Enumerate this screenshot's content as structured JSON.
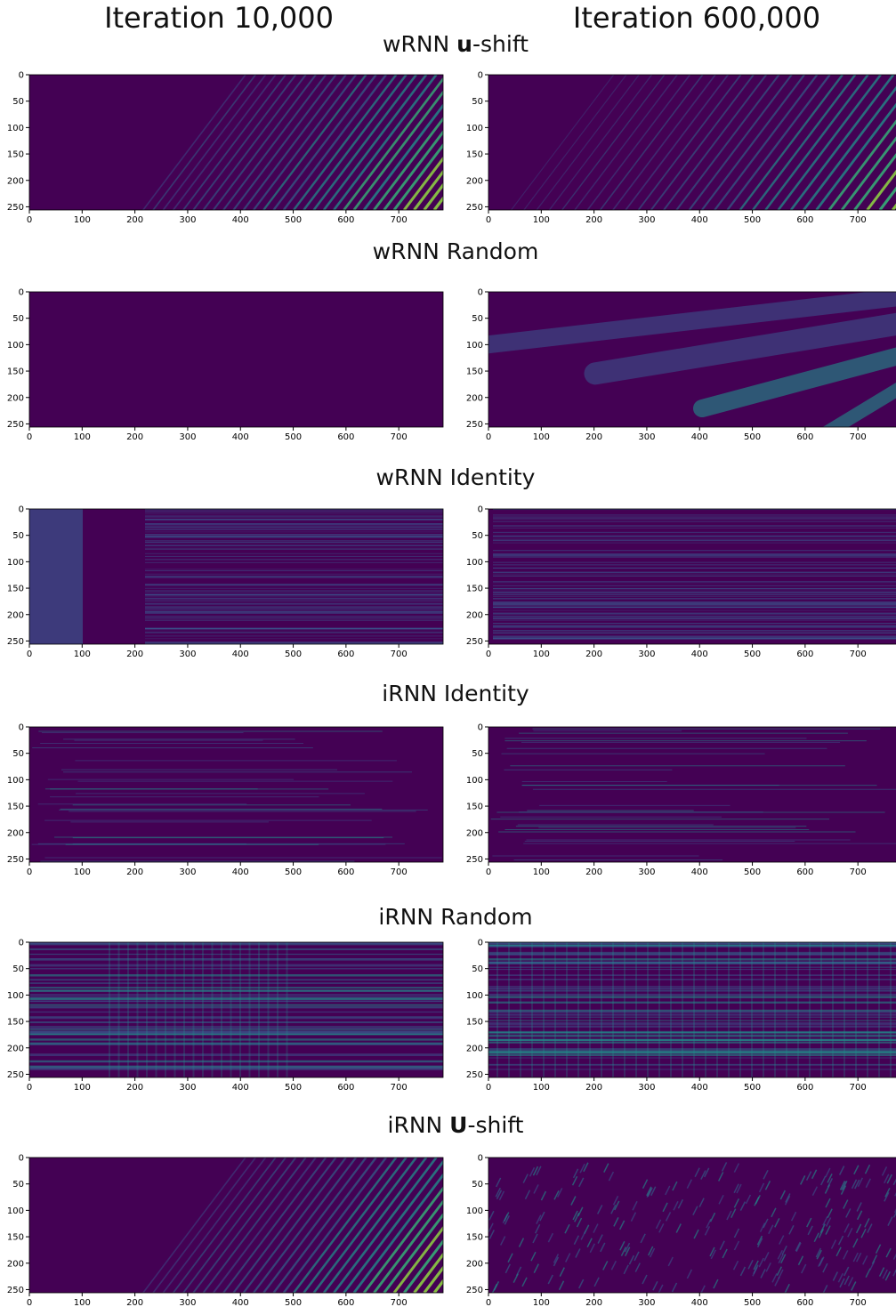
{
  "column_titles": [
    "Iteration 10,000",
    "Iteration 600,000"
  ],
  "rows": [
    {
      "title": {
        "prefix": "wRNN ",
        "bold": "u",
        "suffix": "-shift"
      }
    },
    {
      "title": {
        "prefix": "wRNN Random"
      }
    },
    {
      "title": {
        "prefix": "wRNN Identity"
      }
    },
    {
      "title": {
        "prefix": "iRNN Identity"
      }
    },
    {
      "title": {
        "prefix": "iRNN Random"
      }
    },
    {
      "title": {
        "prefix": "iRNN ",
        "bold": "U",
        "suffix": "-shift"
      }
    }
  ],
  "axes": {
    "xlim": [
      0,
      784
    ],
    "ylim": [
      0,
      256
    ],
    "xticks": [
      0,
      100,
      200,
      300,
      400,
      500,
      600,
      700
    ],
    "yticks": [
      0,
      50,
      100,
      150,
      200,
      250
    ]
  }
}
